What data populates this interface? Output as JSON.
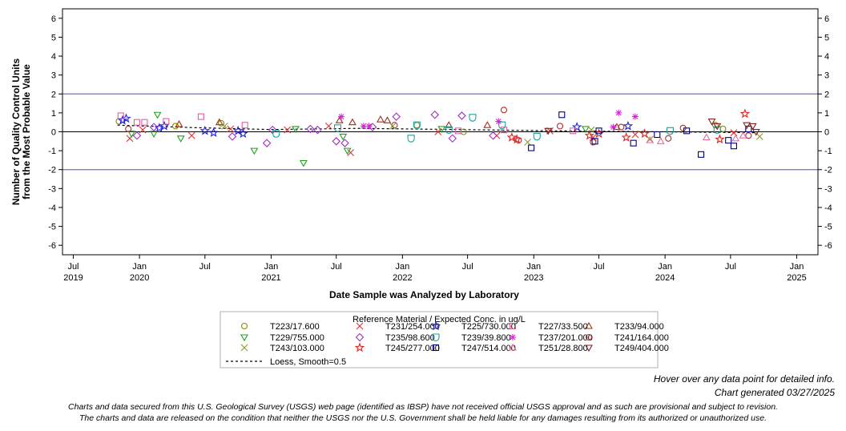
{
  "chart_data": {
    "type": "scatter",
    "title": "",
    "xlabel": "Date Sample was Analyzed by Laboratory",
    "ylabel_lines": [
      "Number of Quality Control Units",
      "from the Most Probable Value"
    ],
    "y_ticks": [
      -6,
      -5,
      -4,
      -3,
      -2,
      -1,
      0,
      1,
      2,
      3,
      4,
      5,
      6
    ],
    "ylim": [
      -6.5,
      6.5
    ],
    "xlim": [
      "2019-06-01",
      "2025-03-01"
    ],
    "x_ticks": [
      {
        "date": "2019-07-01",
        "month": "Jul",
        "year": "2019"
      },
      {
        "date": "2020-01-01",
        "month": "Jan",
        "year": "2020"
      },
      {
        "date": "2020-07-01",
        "month": "Jul",
        "year": ""
      },
      {
        "date": "2021-01-01",
        "month": "Jan",
        "year": "2021"
      },
      {
        "date": "2021-07-01",
        "month": "Jul",
        "year": ""
      },
      {
        "date": "2022-01-01",
        "month": "Jan",
        "year": "2022"
      },
      {
        "date": "2022-07-01",
        "month": "Jul",
        "year": ""
      },
      {
        "date": "2023-01-01",
        "month": "Jan",
        "year": "2023"
      },
      {
        "date": "2023-07-01",
        "month": "Jul",
        "year": ""
      },
      {
        "date": "2024-01-01",
        "month": "Jan",
        "year": "2024"
      },
      {
        "date": "2024-07-01",
        "month": "Jul",
        "year": ""
      },
      {
        "date": "2025-01-01",
        "month": "Jan",
        "year": "2025"
      }
    ],
    "reference_lines": {
      "control_limits": [
        -2,
        2
      ],
      "zero": 0
    },
    "legend_title": "Reference Material / Expected Conc. in ug/L",
    "legend_position": "bottom-center",
    "grid": false,
    "series": [
      {
        "name": "T223/17.600",
        "marker": "circle",
        "color": "#8a8a00",
        "points": [
          [
            "2019-11-05",
            0.55
          ],
          [
            "2020-04-10",
            0.3
          ],
          [
            "2020-08-15",
            0.45
          ],
          [
            "2022-02-10",
            0.35
          ],
          [
            "2022-06-20",
            0.0
          ],
          [
            "2024-05-20",
            0.35
          ],
          [
            "2024-06-10",
            0.15
          ]
        ]
      },
      {
        "name": "T231/254.000",
        "marker": "x",
        "color": "#e03030",
        "points": [
          [
            "2019-12-05",
            -0.35
          ],
          [
            "2020-01-10",
            0.1
          ],
          [
            "2020-05-25",
            -0.2
          ],
          [
            "2020-09-10",
            0.15
          ],
          [
            "2021-02-15",
            0.1
          ],
          [
            "2021-06-10",
            0.3
          ],
          [
            "2021-08-10",
            -1.1
          ],
          [
            "2022-04-10",
            0.0
          ],
          [
            "2022-09-20",
            -0.2
          ],
          [
            "2023-02-15",
            0.05
          ],
          [
            "2023-06-15",
            -0.3
          ],
          [
            "2023-10-10",
            -0.15
          ],
          [
            "2024-07-10",
            -0.05
          ]
        ]
      },
      {
        "name": "T225/730.000",
        "marker": "star",
        "color": "#2020e0",
        "points": [
          [
            "2019-11-15",
            0.6
          ],
          [
            "2019-11-25",
            0.7
          ],
          [
            "2020-02-25",
            0.2
          ],
          [
            "2020-03-10",
            0.3
          ],
          [
            "2020-07-01",
            0.05
          ],
          [
            "2020-07-25",
            -0.05
          ],
          [
            "2020-10-01",
            0.05
          ],
          [
            "2020-10-15",
            -0.1
          ],
          [
            "2023-05-01",
            0.25
          ],
          [
            "2023-09-20",
            0.3
          ]
        ]
      },
      {
        "name": "T227/33.500",
        "marker": "square",
        "color": "#e060a0",
        "points": [
          [
            "2019-11-10",
            0.85
          ],
          [
            "2019-12-25",
            0.5
          ],
          [
            "2020-01-15",
            0.5
          ],
          [
            "2020-03-15",
            0.55
          ],
          [
            "2020-06-20",
            0.8
          ],
          [
            "2020-10-20",
            0.35
          ],
          [
            "2022-06-05",
            0.05
          ],
          [
            "2022-10-10",
            0.1
          ],
          [
            "2023-04-20",
            0.05
          ]
        ]
      },
      {
        "name": "T233/94.000",
        "marker": "triangle",
        "color": "#a03020",
        "points": [
          [
            "2020-04-20",
            0.4
          ],
          [
            "2020-08-10",
            0.5
          ],
          [
            "2021-07-10",
            0.6
          ],
          [
            "2021-08-15",
            0.5
          ],
          [
            "2021-11-01",
            0.65
          ],
          [
            "2021-11-20",
            0.6
          ],
          [
            "2022-05-10",
            0.35
          ],
          [
            "2022-08-25",
            0.35
          ],
          [
            "2023-08-20",
            0.25
          ]
        ]
      },
      {
        "name": "T229/755.000",
        "marker": "triangle-down",
        "color": "#20a020",
        "points": [
          [
            "2019-12-10",
            -0.1
          ],
          [
            "2020-02-10",
            -0.1
          ],
          [
            "2020-02-20",
            0.9
          ],
          [
            "2020-04-25",
            -0.35
          ],
          [
            "2020-11-15",
            -1.0
          ],
          [
            "2021-03-10",
            0.15
          ],
          [
            "2021-04-01",
            -1.65
          ],
          [
            "2021-07-20",
            -0.25
          ],
          [
            "2021-08-01",
            -1.0
          ],
          [
            "2022-04-20",
            0.15
          ],
          [
            "2023-05-25",
            0.15
          ]
        ]
      },
      {
        "name": "T235/98.600",
        "marker": "diamond",
        "color": "#a030c0",
        "points": [
          [
            "2019-12-25",
            -0.2
          ],
          [
            "2020-02-10",
            0.25
          ],
          [
            "2020-09-15",
            -0.25
          ],
          [
            "2020-12-20",
            -0.6
          ],
          [
            "2021-01-05",
            0.1
          ],
          [
            "2021-04-20",
            0.15
          ],
          [
            "2021-05-10",
            0.1
          ],
          [
            "2021-07-01",
            -0.5
          ],
          [
            "2021-07-25",
            -0.6
          ],
          [
            "2021-10-10",
            0.25
          ],
          [
            "2021-12-15",
            0.8
          ],
          [
            "2022-04-01",
            0.9
          ],
          [
            "2022-05-20",
            -0.35
          ],
          [
            "2022-06-15",
            0.85
          ],
          [
            "2022-09-10",
            -0.2
          ]
        ]
      },
      {
        "name": "T239/39.800",
        "marker": "shield",
        "color": "#20a0a0",
        "points": [
          [
            "2021-01-15",
            -0.1
          ],
          [
            "2021-07-05",
            0.2
          ],
          [
            "2022-01-25",
            -0.35
          ],
          [
            "2022-02-10",
            0.35
          ],
          [
            "2022-05-10",
            0.1
          ],
          [
            "2022-07-15",
            0.75
          ],
          [
            "2022-10-05",
            0.35
          ],
          [
            "2023-01-10",
            -0.25
          ],
          [
            "2024-01-15",
            0.05
          ],
          [
            "2024-05-25",
            0.1
          ]
        ]
      },
      {
        "name": "T237/201.000",
        "marker": "asterisk",
        "color": "#e020e0",
        "points": [
          [
            "2021-07-15",
            0.8
          ],
          [
            "2021-09-15",
            0.3
          ],
          [
            "2021-09-30",
            0.3
          ],
          [
            "2022-09-25",
            0.55
          ],
          [
            "2023-08-25",
            1.0
          ],
          [
            "2023-08-10",
            0.25
          ],
          [
            "2023-10-10",
            0.8
          ]
        ]
      },
      {
        "name": "T241/164.000",
        "marker": "circle",
        "color": "#b03030",
        "points": [
          [
            "2019-12-01",
            0.15
          ],
          [
            "2021-12-10",
            0.35
          ],
          [
            "2022-10-10",
            1.15
          ],
          [
            "2022-11-20",
            -0.45
          ],
          [
            "2023-03-15",
            0.3
          ],
          [
            "2023-06-15",
            -0.55
          ],
          [
            "2023-09-01",
            0.25
          ],
          [
            "2024-01-10",
            -0.35
          ],
          [
            "2024-02-20",
            0.2
          ],
          [
            "2024-08-20",
            -0.2
          ]
        ]
      },
      {
        "name": "T243/103.000",
        "marker": "x",
        "color": "#8a9a20",
        "points": [
          [
            "2020-08-25",
            0.3
          ],
          [
            "2021-12-05",
            0.3
          ],
          [
            "2022-12-15",
            -0.55
          ],
          [
            "2023-06-10",
            0.1
          ],
          [
            "2023-11-20",
            -0.4
          ],
          [
            "2024-09-20",
            -0.25
          ]
        ]
      },
      {
        "name": "T245/277.000",
        "marker": "star",
        "color": "#e02020",
        "points": [
          [
            "2022-11-01",
            -0.3
          ],
          [
            "2022-11-15",
            -0.4
          ],
          [
            "2023-06-05",
            -0.2
          ],
          [
            "2023-07-01",
            -0.1
          ],
          [
            "2023-09-15",
            -0.3
          ],
          [
            "2023-11-05",
            -0.1
          ],
          [
            "2024-06-01",
            -0.4
          ],
          [
            "2024-08-10",
            0.95
          ]
        ]
      },
      {
        "name": "T247/514.000",
        "marker": "square",
        "color": "#000080",
        "points": [
          [
            "2022-12-25",
            -0.85
          ],
          [
            "2023-03-20",
            0.9
          ],
          [
            "2023-06-20",
            -0.5
          ],
          [
            "2023-07-01",
            0.05
          ],
          [
            "2023-10-05",
            -0.6
          ],
          [
            "2023-12-10",
            -0.15
          ],
          [
            "2024-03-01",
            0.05
          ],
          [
            "2024-04-10",
            -1.2
          ],
          [
            "2024-06-25",
            -0.45
          ],
          [
            "2024-07-10",
            -0.75
          ],
          [
            "2024-08-20",
            0.15
          ]
        ]
      },
      {
        "name": "T251/28.800",
        "marker": "triangle",
        "color": "#e070a0",
        "points": [
          [
            "2023-11-20",
            -0.45
          ],
          [
            "2023-12-20",
            -0.5
          ],
          [
            "2024-04-25",
            -0.3
          ],
          [
            "2024-07-15",
            -0.35
          ],
          [
            "2024-08-05",
            -0.2
          ]
        ]
      },
      {
        "name": "T249/404.000",
        "marker": "triangle-down",
        "color": "#802020",
        "points": [
          [
            "2023-02-10",
            0.05
          ],
          [
            "2024-05-10",
            0.55
          ],
          [
            "2024-05-25",
            0.3
          ],
          [
            "2024-08-15",
            0.35
          ],
          [
            "2024-09-01",
            0.3
          ],
          [
            "2024-09-10",
            0.0
          ]
        ]
      }
    ],
    "loess": {
      "name": "Loess, Smooth=0.5",
      "style": "dashed",
      "points": [
        [
          "2019-11-01",
          0.35
        ],
        [
          "2020-06-01",
          0.22
        ],
        [
          "2021-01-01",
          0.12
        ],
        [
          "2021-09-01",
          0.18
        ],
        [
          "2022-06-01",
          0.12
        ],
        [
          "2023-03-01",
          0.05
        ],
        [
          "2024-01-01",
          0.0
        ],
        [
          "2024-09-15",
          -0.05
        ]
      ]
    }
  },
  "notes": {
    "hover": "Hover over any data point for detailed info.",
    "generated": "Chart generated 03/27/2025",
    "disclaimer_line1": "Charts and data secured from this U.S. Geological Survey (USGS) web page (identified as IBSP) have not received official USGS approval and as such are provisional and subject to revision.",
    "disclaimer_line2": "The charts and data are released on the condition that neither the USGS nor the U.S. Government shall be held liable for any damages resulting from its authorized or unauthorized use."
  }
}
